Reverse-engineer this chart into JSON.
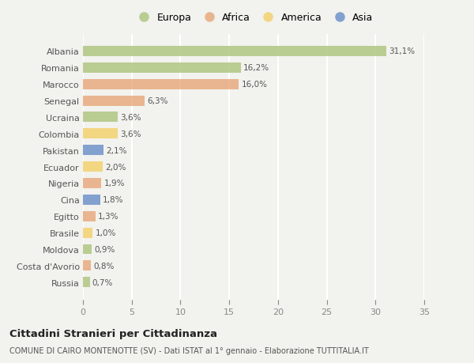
{
  "categories": [
    "Albania",
    "Romania",
    "Marocco",
    "Senegal",
    "Ucraina",
    "Colombia",
    "Pakistan",
    "Ecuador",
    "Nigeria",
    "Cina",
    "Egitto",
    "Brasile",
    "Moldova",
    "Costa d'Avorio",
    "Russia"
  ],
  "values": [
    31.1,
    16.2,
    16.0,
    6.3,
    3.6,
    3.6,
    2.1,
    2.0,
    1.9,
    1.8,
    1.3,
    1.0,
    0.9,
    0.8,
    0.7
  ],
  "labels": [
    "31,1%",
    "16,2%",
    "16,0%",
    "6,3%",
    "3,6%",
    "3,6%",
    "2,1%",
    "2,0%",
    "1,9%",
    "1,8%",
    "1,3%",
    "1,0%",
    "0,9%",
    "0,8%",
    "0,7%"
  ],
  "continents": [
    "Europa",
    "Europa",
    "Africa",
    "Africa",
    "Europa",
    "America",
    "Asia",
    "America",
    "Africa",
    "Asia",
    "Africa",
    "America",
    "Europa",
    "Africa",
    "Europa"
  ],
  "colors": {
    "Europa": "#adc47e",
    "Africa": "#e8a87c",
    "America": "#f2d06b",
    "Asia": "#6a8fc8"
  },
  "background_color": "#f2f2ee",
  "title": "Cittadini Stranieri per Cittadinanza",
  "subtitle": "COMUNE DI CAIRO MONTENOTTE (SV) - Dati ISTAT al 1° gennaio - Elaborazione TUTTITALIA.IT",
  "xlim": [
    0,
    35
  ],
  "xticks": [
    0,
    5,
    10,
    15,
    20,
    25,
    30,
    35
  ],
  "bar_height": 0.62,
  "figsize": [
    6.0,
    4.6
  ],
  "dpi": 100,
  "legend_order": [
    "Europa",
    "Africa",
    "America",
    "Asia"
  ]
}
